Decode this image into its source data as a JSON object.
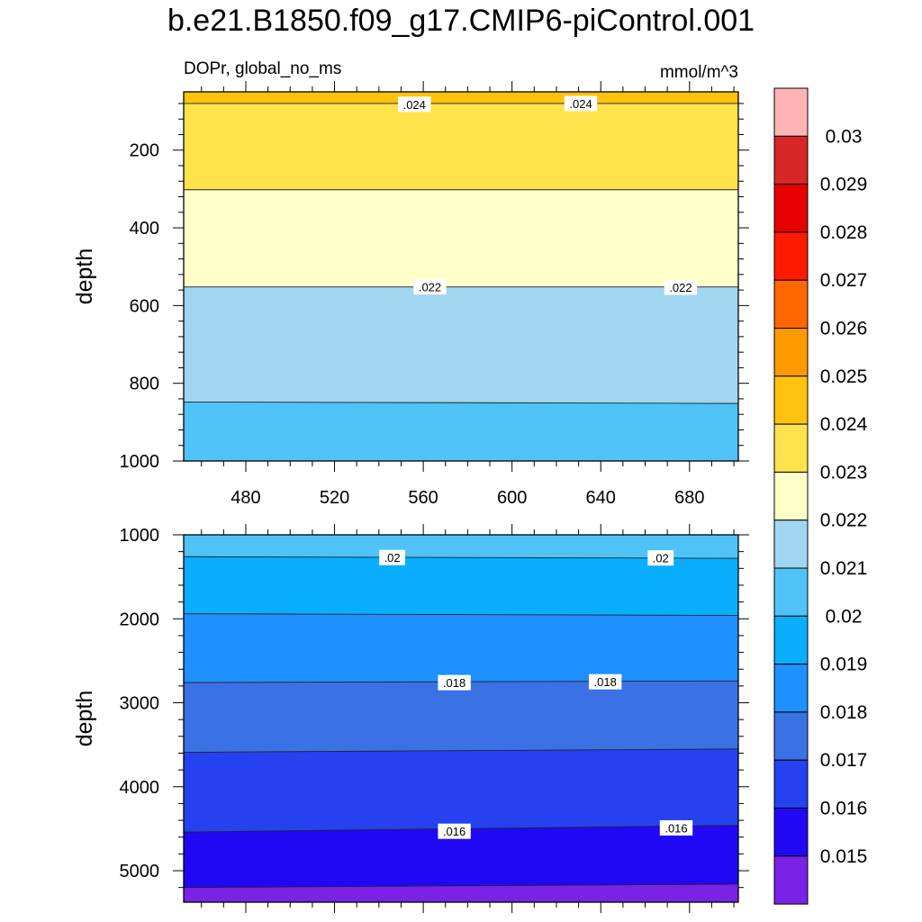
{
  "title": "b.e21.B1850.f09_g17.CMIP6-piControl.001",
  "chart_data": [
    {
      "type": "contour",
      "panel": "upper",
      "left_subtitle": "DOPr, global_no_ms",
      "right_subtitle": "mmol/m^3",
      "ylabel": "depth",
      "xlabel": "",
      "xlim": [
        452,
        702
      ],
      "ylim": [
        1000,
        50
      ],
      "yreversed": true,
      "xticks": [
        480,
        520,
        560,
        600,
        640,
        680
      ],
      "yticks": [
        200,
        400,
        600,
        800,
        1000
      ],
      "x": [
        452,
        702
      ],
      "bands": [
        {
          "lower_boundary": [
            50,
            50
          ],
          "upper_boundary": [
            80,
            80
          ],
          "range": "0.024–0.025"
        },
        {
          "lower_boundary": [
            80,
            80
          ],
          "upper_boundary": [
            302,
            302
          ],
          "range": "0.023–0.024"
        },
        {
          "lower_boundary": [
            302,
            302
          ],
          "upper_boundary": [
            552,
            552
          ],
          "range": "0.022–0.023"
        },
        {
          "lower_boundary": [
            552,
            552
          ],
          "upper_boundary": [
            848,
            852
          ],
          "range": "0.021–0.022"
        },
        {
          "lower_boundary": [
            848,
            852
          ],
          "upper_boundary": [
            1000,
            1000
          ],
          "range": "0.020–0.021"
        }
      ],
      "contour_labels": [
        {
          "text": ".024",
          "x": 556,
          "y": 82
        },
        {
          "text": ".024",
          "x": 631,
          "y": 80
        },
        {
          "text": ".022",
          "x": 563,
          "y": 552
        },
        {
          "text": ".022",
          "x": 676,
          "y": 553
        }
      ]
    },
    {
      "type": "contour",
      "panel": "lower",
      "left_subtitle": "",
      "right_subtitle": "",
      "ylabel": "depth",
      "xlabel": "",
      "xlim": [
        452,
        702
      ],
      "ylim": [
        5375,
        1000
      ],
      "yreversed": true,
      "xticks": [
        480,
        520,
        560,
        600,
        640,
        680
      ],
      "xticklabels_visible": false,
      "yticks": [
        1000,
        2000,
        3000,
        4000,
        5000
      ],
      "x": [
        452,
        702
      ],
      "bands": [
        {
          "lower_boundary": [
            1000,
            1000
          ],
          "upper_boundary": [
            1260,
            1280
          ],
          "range": "0.020–0.021"
        },
        {
          "lower_boundary": [
            1260,
            1280
          ],
          "upper_boundary": [
            1940,
            1960
          ],
          "range": "0.019–0.020"
        },
        {
          "lower_boundary": [
            1940,
            1960
          ],
          "upper_boundary": [
            2760,
            2740
          ],
          "range": "0.018–0.019"
        },
        {
          "lower_boundary": [
            2760,
            2740
          ],
          "upper_boundary": [
            3590,
            3550
          ],
          "range": "0.017–0.018"
        },
        {
          "lower_boundary": [
            3590,
            3550
          ],
          "upper_boundary": [
            4540,
            4460
          ],
          "range": "0.016–0.017"
        },
        {
          "lower_boundary": [
            4540,
            4460
          ],
          "upper_boundary": [
            5200,
            5160
          ],
          "range": "0.015–0.016"
        },
        {
          "lower_boundary": [
            5200,
            5160
          ],
          "upper_boundary": [
            5375,
            5375
          ],
          "range": "<0.015"
        }
      ],
      "contour_labels": [
        {
          "text": ".02",
          "x": 546,
          "y": 1270
        },
        {
          "text": ".02",
          "x": 667,
          "y": 1275
        },
        {
          "text": ".018",
          "x": 574,
          "y": 2760
        },
        {
          "text": ".018",
          "x": 642,
          "y": 2750
        },
        {
          "text": ".016",
          "x": 574,
          "y": 4530
        },
        {
          "text": ".016",
          "x": 674,
          "y": 4490
        }
      ]
    }
  ],
  "colorbar": {
    "orientation": "vertical",
    "labels": [
      "0.03",
      "0.029",
      "0.028",
      "0.027",
      "0.026",
      "0.025",
      "0.024",
      "0.023",
      "0.022",
      "0.021",
      "0.02",
      "0.019",
      "0.018",
      "0.017",
      "0.016",
      "0.015"
    ],
    "colors": [
      "#ffb4b4",
      "#d92626",
      "#e60000",
      "#ff1a00",
      "#ff6600",
      "#ff9900",
      "#ffc20e",
      "#ffe34d",
      "#ffffc8",
      "#a0d6f0",
      "#4fc3f7",
      "#0aaeff",
      "#1e90ff",
      "#3a72e6",
      "#2541f0",
      "#2008f5",
      "#7a22e6"
    ]
  }
}
